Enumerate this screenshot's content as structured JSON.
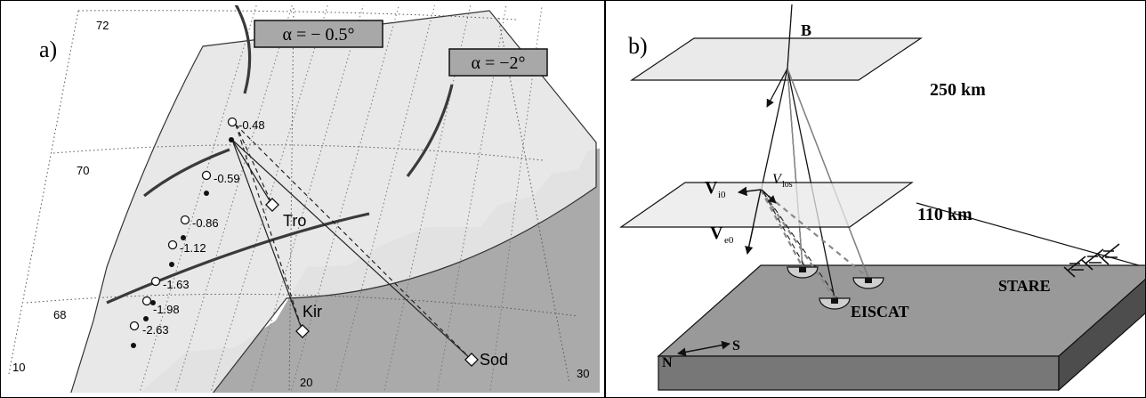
{
  "panel_a": {
    "label": "a)",
    "alpha_box_1": "α = − 0.5°",
    "alpha_box_2": "α = −2°",
    "lat_labels": [
      "72",
      "70",
      "68"
    ],
    "lon_labels": [
      "10",
      "20",
      "30"
    ],
    "stations": {
      "tro": "Tro",
      "kir": "Kir",
      "sod": "Sod"
    },
    "point_values": [
      "-0.48",
      "-0.59",
      "-0.86",
      "-1.12",
      "-1.63",
      "-1.98",
      "-2.63"
    ]
  },
  "panel_b": {
    "label": "b)",
    "b_field": "B",
    "alt_250": "250 km",
    "alt_110": "110 km",
    "v_i0_main": "V",
    "v_i0_sub": "i0",
    "v_los_main": "V",
    "v_los_sub": "los",
    "v_e0_main": "V",
    "v_e0_sub": "e0",
    "eiscat": "EISCAT",
    "stare": "STARE",
    "north": "N",
    "south": "S"
  },
  "colors": {
    "land": "#aaaaaa",
    "fov": "#e6e6e6",
    "ground": "#999999",
    "ground_side": "#4d4d4d",
    "plane": "#e8e8e8",
    "box": "#a8a8a8"
  }
}
